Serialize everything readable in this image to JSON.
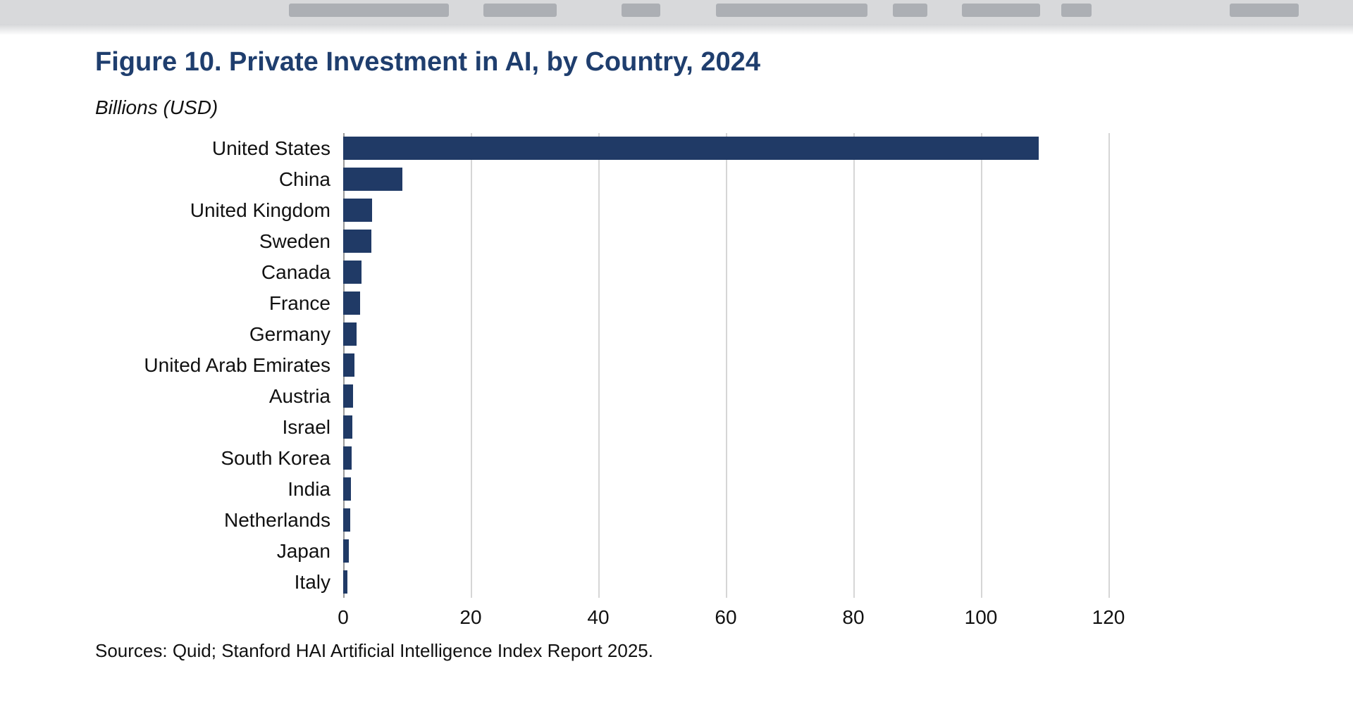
{
  "page": {
    "background": "#ffffff"
  },
  "colors": {
    "title_text": "#1f3e6e",
    "bar": "#203a66",
    "gridline": "#d6d6d6",
    "axis_line": "#9a9a9a",
    "header_strip_bg": "#d8d9db",
    "header_strip_blocks": "#acafb4"
  },
  "chart_data": {
    "type": "bar",
    "orientation": "horizontal",
    "title": "Figure 10. Private Investment in AI, by Country, 2024",
    "unit_label": "Billions (USD)",
    "categories": [
      "United States",
      "China",
      "United Kingdom",
      "Sweden",
      "Canada",
      "France",
      "Germany",
      "United Arab Emirates",
      "Austria",
      "Israel",
      "South Korea",
      "India",
      "Netherlands",
      "Japan",
      "Italy"
    ],
    "values": [
      109.1,
      9.3,
      4.5,
      4.4,
      2.9,
      2.6,
      2.1,
      1.8,
      1.6,
      1.4,
      1.3,
      1.2,
      1.1,
      0.9,
      0.7
    ],
    "xlabel": "",
    "ylabel": "",
    "xlim": [
      0,
      130
    ],
    "xticks": [
      0,
      20,
      40,
      60,
      80,
      100,
      120
    ],
    "grid": "vertical-gridlines",
    "legend": "none",
    "bar_color": "#203a66",
    "source": "Sources: Quid; Stanford HAI Artificial Intelligence Index Report 2025."
  }
}
